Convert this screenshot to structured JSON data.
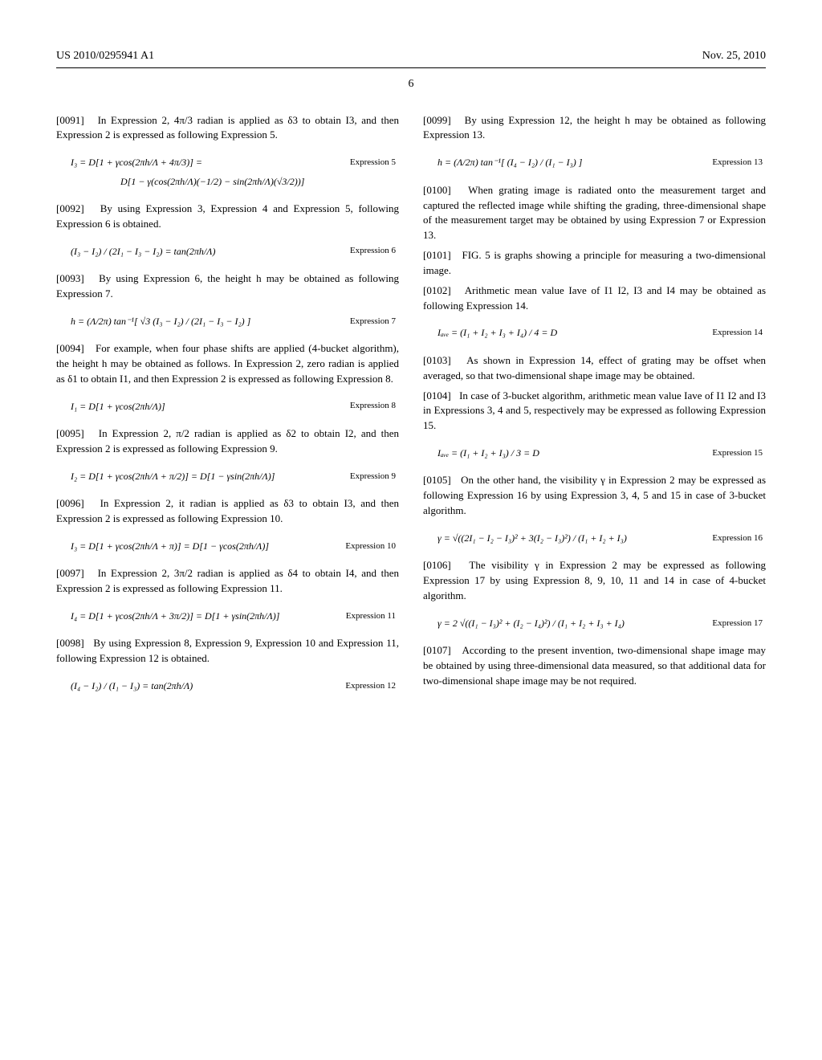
{
  "header": {
    "left": "US 2010/0295941 A1",
    "right": "Nov. 25, 2010"
  },
  "page_number": "6",
  "p91": {
    "num": "[0091]",
    "text": "In Expression 2, 4π/3 radian is applied as δ3 to obtain I3, and then Expression 2 is expressed as following Expression 5."
  },
  "e5": {
    "label": "Expression 5",
    "line1": "I₃ = D[1 + γcos(2πh/Λ + 4π/3)] =",
    "line2": "D[1 − γ(cos(2πh/Λ)(−1/2) − sin(2πh/Λ)(√3/2))]"
  },
  "p92": {
    "num": "[0092]",
    "text": "By using Expression 3, Expression 4 and Expression 5, following Expression 6 is obtained."
  },
  "e6": {
    "label": "Expression 6",
    "math": "(I₃ − I₂) / (2I₁ − I₃ − I₂) = tan(2πh/Λ)"
  },
  "p93": {
    "num": "[0093]",
    "text": "By using Expression 6, the height h may be obtained as following Expression 7."
  },
  "e7": {
    "label": "Expression 7",
    "math": "h = (Λ/2π) tan⁻¹[ √3 (I₃ − I₂) / (2I₁ − I₃ − I₂) ]"
  },
  "p94": {
    "num": "[0094]",
    "text": "For example, when four phase shifts are applied (4-bucket algorithm), the height h may be obtained as follows. In Expression 2, zero radian is applied as δ1 to obtain I1, and then Expression 2 is expressed as following Expression 8."
  },
  "e8": {
    "label": "Expression 8",
    "math": "I₁ = D[1 + γcos(2πh/Λ)]"
  },
  "p95": {
    "num": "[0095]",
    "text": "In Expression 2, π/2 radian is applied as δ2 to obtain I2, and then Expression 2 is expressed as following Expression 9."
  },
  "e9": {
    "label": "Expression 9",
    "math": "I₂ = D[1 + γcos(2πh/Λ + π/2)] = D[1 − γsin(2πh/Λ)]"
  },
  "p96": {
    "num": "[0096]",
    "text": "In Expression 2, it radian is applied as δ3 to obtain I3, and then Expression 2 is expressed as following Expression 10."
  },
  "e10": {
    "label": "Expression 10",
    "math": "I₃ = D[1 + γcos(2πh/Λ + π)] = D[1 − γcos(2πh/Λ)]"
  },
  "p97": {
    "num": "[0097]",
    "text": "In Expression 2, 3π/2 radian is applied as δ4 to obtain I4, and then Expression 2 is expressed as following Expression 11."
  },
  "e11": {
    "label": "Expression 11",
    "math": "I₄ = D[1 + γcos(2πh/Λ + 3π/2)] = D[1 + γsin(2πh/Λ)]"
  },
  "p98": {
    "num": "[0098]",
    "text": "By using Expression 8, Expression 9, Expression 10 and Expression 11, following Expression 12 is obtained."
  },
  "e12": {
    "label": "Expression 12",
    "math": "(I₄ − I₂) / (I₁ − I₃) = tan(2πh/Λ)"
  },
  "p99": {
    "num": "[0099]",
    "text": "By using Expression 12, the height h may be obtained as following Expression 13."
  },
  "e13": {
    "label": "Expression 13",
    "math": "h = (Λ/2π) tan⁻¹[ (I₄ − I₂) / (I₁ − I₃) ]"
  },
  "p100": {
    "num": "[0100]",
    "text": "When grating image is radiated onto the measurement target and captured the reflected image while shifting the grading, three-dimensional shape of the measurement target may be obtained by using Expression 7 or Expression 13."
  },
  "p101": {
    "num": "[0101]",
    "text": "FIG. 5 is graphs showing a principle for measuring a two-dimensional image."
  },
  "p102": {
    "num": "[0102]",
    "text": "Arithmetic mean value Iave of I1 I2, I3 and I4 may be obtained as following Expression 14."
  },
  "e14": {
    "label": "Expression 14",
    "math": "Iₐᵥₑ = (I₁ + I₂ + I₃ + I₄) / 4 = D"
  },
  "p103": {
    "num": "[0103]",
    "text": "As shown in Expression 14, effect of grating may be offset when averaged, so that two-dimensional shape image may be obtained."
  },
  "p104": {
    "num": "[0104]",
    "text": "In case of 3-bucket algorithm, arithmetic mean value Iave of I1 I2 and I3 in Expressions 3, 4 and 5, respectively may be expressed as following Expression 15."
  },
  "e15": {
    "label": "Expression 15",
    "math": "Iₐᵥₑ = (I₁ + I₂ + I₃) / 3 = D"
  },
  "p105": {
    "num": "[0105]",
    "text": "On the other hand, the visibility γ in Expression 2 may be expressed as following Expression 16 by using Expression 3, 4, 5 and 15 in case of 3-bucket algorithm."
  },
  "e16": {
    "label": "Expression 16",
    "math": "γ = √((2I₁ − I₂ − I₃)² + 3(I₂ − I₃)²) / (I₁ + I₂ + I₃)"
  },
  "p106": {
    "num": "[0106]",
    "text": "The visibility γ in Expression 2 may be expressed as following Expression 17 by using Expression 8, 9, 10, 11 and 14 in case of 4-bucket algorithm."
  },
  "e17": {
    "label": "Expression 17",
    "math": "γ = 2 √((I₁ − I₃)² + (I₂ − I₄)²) / (I₁ + I₂ + I₃ + I₄)"
  },
  "p107": {
    "num": "[0107]",
    "text": "According to the present invention, two-dimensional shape image may be obtained by using three-dimensional data measured, so that additional data for two-dimensional shape image may be not required."
  }
}
